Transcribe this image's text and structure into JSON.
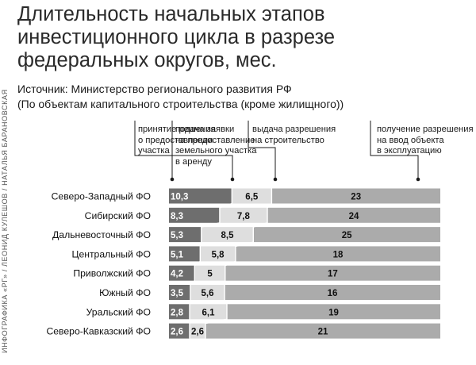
{
  "title_lines": [
    "Длительность начальных этапов",
    "инвестиционного цикла в разрезе",
    "федеральных округов, мес."
  ],
  "subtitle_lines": [
    "Источник: Министерство регионального развития РФ",
    "(По объектам капитального строительства (кроме жилищного))"
  ],
  "credit": "ИНФОГРАФИКА «РГ» / ЛЕОНИД КУЛЕШОВ / НАТАЛЬЯ БАРАНОВСКАЯ",
  "chart_data": {
    "type": "bar",
    "stacked": true,
    "categories": [
      "Северо-Западный ФО",
      "Сибирский ФО",
      "Дальневосточный ФО",
      "Центральный ФО",
      "Приволжский ФО",
      "Южный ФО",
      "Уральский ФО",
      "Северо-Кавказский ФО"
    ],
    "series": [
      {
        "name": "подача заявки на предоставление земельного участка в аренду",
        "values": [
          10.3,
          8.3,
          5.3,
          5.1,
          4.2,
          3.5,
          2.8,
          2.6
        ],
        "labels": [
          "10,3",
          "8,3",
          "5,3",
          "5,1",
          "4,2",
          "3,5",
          "2,8",
          "2,6"
        ]
      },
      {
        "name": "принятие решения о предоставлении участка",
        "values": [
          6.5,
          7.8,
          8.5,
          5.8,
          5,
          5.6,
          6.1,
          2.6
        ],
        "labels": [
          "6,5",
          "7,8",
          "8,5",
          "5,8",
          "5",
          "5,6",
          "6,1",
          "2,6"
        ]
      },
      {
        "name": "выдача разрешения на строительство",
        "values": [
          null,
          null,
          null,
          null,
          null,
          null,
          null,
          null
        ],
        "labels": [
          "",
          "",
          "",
          "",
          "",
          "",
          "",
          ""
        ]
      },
      {
        "name": "получение разрешения на ввод объекта в эксплуатацию",
        "values": [
          23,
          24,
          25,
          18,
          17,
          16,
          19,
          21
        ],
        "labels": [
          "23",
          "24",
          "25",
          "18",
          "17",
          "16",
          "19",
          "21"
        ]
      }
    ],
    "stage_labels": [
      [
        "подача заявки",
        "на предоставление",
        "земельного участка",
        "в аренду"
      ],
      [
        "принятие решения",
        "о предоставлении",
        "участка"
      ],
      [
        "выдача разрешения",
        "на строительство"
      ],
      [
        "получение разрешения",
        "на ввод объекта",
        "в эксплуатацию"
      ]
    ],
    "colors": {
      "stage1": "#6e6e6e",
      "stage2": "#dedede",
      "stage4": "#ababab",
      "leader": "#1a1a1a"
    },
    "orientation": "horizontal",
    "legend": "top (leader lines to boundaries)"
  }
}
